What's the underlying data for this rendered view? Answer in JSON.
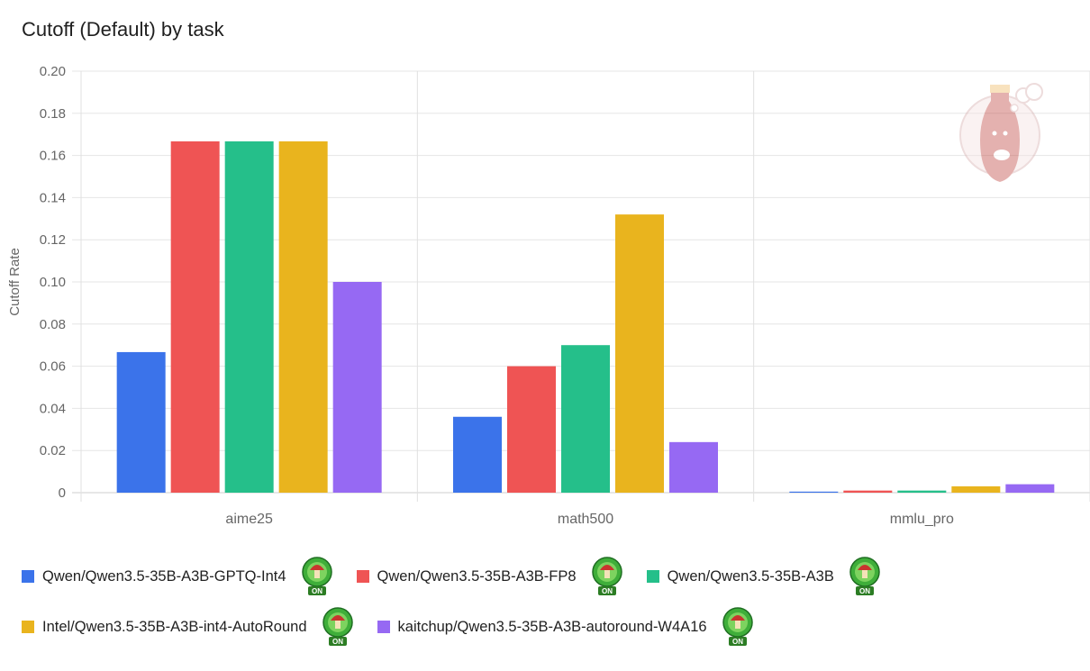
{
  "chart_data": {
    "type": "bar",
    "title": "Cutoff (Default) by task",
    "xlabel": "",
    "ylabel": "Cutoff Rate",
    "ylim": [
      0,
      0.2
    ],
    "yticks": [
      "0",
      "0.02",
      "0.04",
      "0.06",
      "0.08",
      "0.10",
      "0.12",
      "0.14",
      "0.16",
      "0.18",
      "0.20"
    ],
    "grid": true,
    "legend_position": "bottom",
    "categories": [
      "aime25",
      "math500",
      "mmlu_pro"
    ],
    "series": [
      {
        "name": "Qwen/Qwen3.5-35B-A3B-GPTQ-Int4",
        "color": "#3b73ea",
        "values": [
          0.0667,
          0.036,
          0.0005
        ]
      },
      {
        "name": "Qwen/Qwen3.5-35B-A3B-FP8",
        "color": "#ef5454",
        "values": [
          0.1667,
          0.06,
          0.001
        ]
      },
      {
        "name": "Qwen/Qwen3.5-35B-A3B",
        "color": "#25bf8a",
        "values": [
          0.1667,
          0.07,
          0.001
        ]
      },
      {
        "name": "Intel/Qwen3.5-35B-A3B-int4-AutoRound",
        "color": "#e9b41e",
        "values": [
          0.1667,
          0.132,
          0.003
        ]
      },
      {
        "name": "kaitchup/Qwen3.5-35B-A3B-autoround-W4A16",
        "color": "#9669f3",
        "values": [
          0.1,
          0.024,
          0.004
        ]
      }
    ],
    "legend_badge_text": "ON"
  }
}
